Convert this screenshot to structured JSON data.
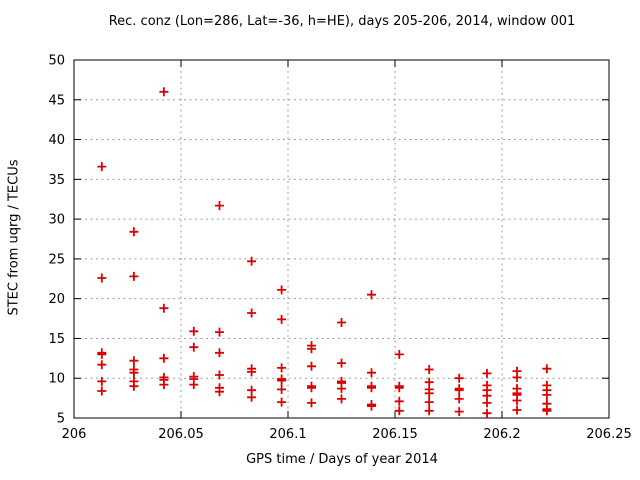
{
  "chart_data": {
    "type": "scatter",
    "title": "Rec. conz (Lon=286, Lat=-36, h=HE), days 205-206, 2014, window 001",
    "xlabel": "GPS time / Days of year 2014",
    "ylabel": "STEC from uqrg / TECUs",
    "xlim": [
      206,
      206.25
    ],
    "ylim": [
      5,
      50
    ],
    "xticks": {
      "values": [
        206,
        206.05,
        206.1,
        206.15,
        206.2,
        206.25
      ],
      "labels": [
        "206",
        "206.05",
        "206.1",
        "206.15",
        "206.2",
        "206.25"
      ]
    },
    "yticks": {
      "values": [
        5,
        10,
        15,
        20,
        25,
        30,
        35,
        40,
        45,
        50
      ],
      "labels": [
        "5",
        "10",
        "15",
        "20",
        "25",
        "30",
        "35",
        "40",
        "45",
        "50"
      ]
    },
    "grid": true,
    "legend_position": "none",
    "marker": {
      "shape": "plus",
      "color": "#dd0000",
      "size": 9
    },
    "series": [
      {
        "name": "STEC",
        "points": [
          [
            206.013,
            36.6
          ],
          [
            206.013,
            22.6
          ],
          [
            206.013,
            13.2
          ],
          [
            206.013,
            13.0
          ],
          [
            206.013,
            11.7
          ],
          [
            206.013,
            9.6
          ],
          [
            206.013,
            8.4
          ],
          [
            206.028,
            28.4
          ],
          [
            206.028,
            22.8
          ],
          [
            206.028,
            12.2
          ],
          [
            206.028,
            11.1
          ],
          [
            206.028,
            10.7
          ],
          [
            206.028,
            9.6
          ],
          [
            206.028,
            9.0
          ],
          [
            206.042,
            46.0
          ],
          [
            206.042,
            18.8
          ],
          [
            206.042,
            12.5
          ],
          [
            206.042,
            10.1
          ],
          [
            206.042,
            9.8
          ],
          [
            206.042,
            9.2
          ],
          [
            206.056,
            15.9
          ],
          [
            206.056,
            13.9
          ],
          [
            206.056,
            10.2
          ],
          [
            206.056,
            9.9
          ],
          [
            206.056,
            9.2
          ],
          [
            206.068,
            31.7
          ],
          [
            206.068,
            15.8
          ],
          [
            206.068,
            13.2
          ],
          [
            206.068,
            10.4
          ],
          [
            206.068,
            8.8
          ],
          [
            206.068,
            8.3
          ],
          [
            206.083,
            24.7
          ],
          [
            206.083,
            18.2
          ],
          [
            206.083,
            11.2
          ],
          [
            206.083,
            10.8
          ],
          [
            206.083,
            8.5
          ],
          [
            206.083,
            7.6
          ],
          [
            206.097,
            21.1
          ],
          [
            206.097,
            17.4
          ],
          [
            206.097,
            11.3
          ],
          [
            206.097,
            9.9
          ],
          [
            206.097,
            9.7
          ],
          [
            206.097,
            8.6
          ],
          [
            206.097,
            7.0
          ],
          [
            206.111,
            14.1
          ],
          [
            206.111,
            13.7
          ],
          [
            206.111,
            11.5
          ],
          [
            206.111,
            9.0
          ],
          [
            206.111,
            8.8
          ],
          [
            206.111,
            6.9
          ],
          [
            206.125,
            17.0
          ],
          [
            206.125,
            11.9
          ],
          [
            206.125,
            9.6
          ],
          [
            206.125,
            9.4
          ],
          [
            206.125,
            8.7
          ],
          [
            206.125,
            7.4
          ],
          [
            206.139,
            20.5
          ],
          [
            206.139,
            10.7
          ],
          [
            206.139,
            9.0
          ],
          [
            206.139,
            8.8
          ],
          [
            206.139,
            6.7
          ],
          [
            206.139,
            6.5
          ],
          [
            206.152,
            13.0
          ],
          [
            206.152,
            9.0
          ],
          [
            206.152,
            8.8
          ],
          [
            206.152,
            7.1
          ],
          [
            206.152,
            5.9
          ],
          [
            206.166,
            11.1
          ],
          [
            206.166,
            9.5
          ],
          [
            206.166,
            8.6
          ],
          [
            206.166,
            8.1
          ],
          [
            206.166,
            7.0
          ],
          [
            206.166,
            5.9
          ],
          [
            206.18,
            10.0
          ],
          [
            206.18,
            8.7
          ],
          [
            206.18,
            8.5
          ],
          [
            206.18,
            7.4
          ],
          [
            206.18,
            5.8
          ],
          [
            206.193,
            10.6
          ],
          [
            206.193,
            9.1
          ],
          [
            206.193,
            8.5
          ],
          [
            206.193,
            7.8
          ],
          [
            206.193,
            6.9
          ],
          [
            206.193,
            5.6
          ],
          [
            206.207,
            10.9
          ],
          [
            206.207,
            10.1
          ],
          [
            206.207,
            8.7
          ],
          [
            206.207,
            8.1
          ],
          [
            206.207,
            7.9
          ],
          [
            206.207,
            7.2
          ],
          [
            206.207,
            6.0
          ],
          [
            206.221,
            11.2
          ],
          [
            206.221,
            9.1
          ],
          [
            206.221,
            8.5
          ],
          [
            206.221,
            7.9
          ],
          [
            206.221,
            6.8
          ],
          [
            206.221,
            6.1
          ],
          [
            206.221,
            5.9
          ]
        ]
      }
    ]
  },
  "colors": {
    "marker": "#dd0000",
    "grid": "#9e9e9e",
    "axis": "#000000",
    "background": "#ffffff"
  }
}
